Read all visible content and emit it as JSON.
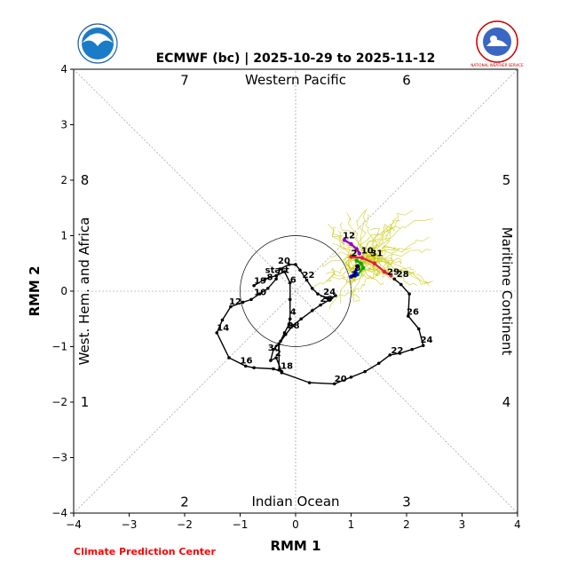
{
  "chart_data": {
    "type": "scatter",
    "title": "ECMWF (bc) | 2025-10-29 to 2025-11-12",
    "xlabel": "RMM 1",
    "ylabel": "RMM 2",
    "xlim": [
      -4,
      4
    ],
    "ylim": [
      -4,
      4
    ],
    "xticks": [
      "−4",
      "−3",
      "−2",
      "−1",
      "0",
      "1",
      "2",
      "3",
      "4"
    ],
    "yticks": [
      "−4",
      "−3",
      "−2",
      "−1",
      "0",
      "1",
      "2",
      "3",
      "4"
    ],
    "regions": {
      "top": "Western Pacific",
      "bottom": "Indian Ocean",
      "left": "West. Hem. and Africa",
      "right": "Maritime Continent"
    },
    "phases": [
      {
        "label": "7",
        "x": -2.0,
        "y": 3.8
      },
      {
        "label": "6",
        "x": 2.0,
        "y": 3.8
      },
      {
        "label": "8",
        "x": -3.8,
        "y": 2.0
      },
      {
        "label": "5",
        "x": 3.8,
        "y": 2.0
      },
      {
        "label": "1",
        "x": -3.8,
        "y": -2.0
      },
      {
        "label": "4",
        "x": 3.8,
        "y": -2.0
      },
      {
        "label": "2",
        "x": -2.0,
        "y": -3.8
      },
      {
        "label": "3",
        "x": 2.0,
        "y": -3.8
      }
    ],
    "grid": "dashed diagonals and zero lines",
    "unit_circle": 1,
    "series": [
      {
        "color": "#000000",
        "points": [
          [
            -0.75,
            0.1
          ],
          [
            -0.55,
            0.22
          ],
          [
            -0.35,
            0.28
          ],
          [
            -0.2,
            0.35
          ],
          [
            -0.1,
            0.15
          ],
          [
            -0.1,
            -0.15
          ],
          [
            -0.1,
            -0.5
          ],
          [
            -0.12,
            -0.6
          ],
          [
            -0.2,
            -0.75
          ],
          [
            -0.27,
            -0.9
          ],
          [
            -0.3,
            -0.95
          ],
          [
            -0.4,
            -1.05
          ],
          [
            -0.45,
            -1.25
          ],
          [
            -0.35,
            -1.2
          ],
          [
            -0.25,
            -1.45
          ],
          [
            -0.4,
            -1.4
          ],
          [
            -0.75,
            -1.38
          ],
          [
            -0.9,
            -1.35
          ],
          [
            -1.2,
            -1.2
          ],
          [
            -1.42,
            -0.75
          ],
          [
            -1.32,
            -0.52
          ],
          [
            -1.17,
            -0.28
          ],
          [
            -0.95,
            -0.2
          ],
          [
            -0.8,
            -0.15
          ],
          [
            -0.65,
            -0.05
          ],
          [
            -0.5,
            0.05
          ],
          [
            -0.35,
            0.22
          ],
          [
            -0.28,
            0.4
          ],
          [
            -0.12,
            0.48
          ],
          [
            0.0,
            0.48
          ],
          [
            0.08,
            0.38
          ],
          [
            0.2,
            0.2
          ],
          [
            0.3,
            0.05
          ],
          [
            0.4,
            -0.05
          ],
          [
            0.55,
            -0.12
          ],
          [
            0.65,
            -0.12
          ],
          [
            0.72,
            -0.08
          ],
          [
            0.62,
            -0.15
          ],
          [
            0.45,
            -0.25
          ],
          [
            0.3,
            -0.35
          ],
          [
            0.1,
            -0.5
          ],
          [
            -0.05,
            -0.62
          ],
          [
            -0.18,
            -0.78
          ],
          [
            -0.3,
            -0.95
          ],
          [
            -0.3,
            -1.42
          ],
          [
            -0.25,
            -1.47
          ],
          [
            0.25,
            -1.65
          ],
          [
            0.7,
            -1.67
          ],
          [
            1.0,
            -1.55
          ],
          [
            1.25,
            -1.45
          ],
          [
            1.5,
            -1.3
          ],
          [
            1.7,
            -1.15
          ],
          [
            1.88,
            -1.12
          ],
          [
            2.1,
            -1.05
          ],
          [
            2.3,
            -0.98
          ],
          [
            2.22,
            -0.68
          ],
          [
            2.03,
            -0.45
          ],
          [
            2.05,
            -0.05
          ],
          [
            1.9,
            0.12
          ],
          [
            1.78,
            0.22
          ]
        ]
      },
      {
        "color": "#e6194b",
        "points": [
          [
            1.0,
            0.62
          ],
          [
            1.2,
            0.6
          ],
          [
            1.42,
            0.5
          ],
          [
            1.6,
            0.35
          ],
          [
            1.72,
            0.28
          ]
        ]
      },
      {
        "color": "#00aa00",
        "points": [
          [
            1.1,
            0.55
          ],
          [
            1.18,
            0.5
          ],
          [
            1.22,
            0.42
          ],
          [
            1.12,
            0.3
          ]
        ]
      },
      {
        "color": "#0000ff",
        "points": [
          [
            1.12,
            0.45
          ],
          [
            1.08,
            0.35
          ],
          [
            1.0,
            0.26
          ],
          [
            1.1,
            0.3
          ]
        ]
      },
      {
        "color": "#9400d3",
        "points": [
          [
            0.88,
            0.92
          ],
          [
            1.0,
            0.85
          ],
          [
            1.1,
            0.76
          ],
          [
            1.15,
            0.68
          ]
        ]
      }
    ],
    "labels": [
      {
        "text": "start",
        "x": -0.55,
        "y": 0.33
      },
      {
        "text": "19",
        "x": -0.75,
        "y": 0.14
      },
      {
        "text": "8",
        "x": -0.52,
        "y": 0.2
      },
      {
        "text": "6",
        "x": -0.1,
        "y": 0.15
      },
      {
        "text": "20",
        "x": -0.32,
        "y": 0.5
      },
      {
        "text": "22",
        "x": 0.12,
        "y": 0.24
      },
      {
        "text": "10",
        "x": -0.75,
        "y": -0.07
      },
      {
        "text": "12",
        "x": -1.2,
        "y": -0.24
      },
      {
        "text": "14",
        "x": -1.42,
        "y": -0.71
      },
      {
        "text": "16",
        "x": -1.0,
        "y": -1.3
      },
      {
        "text": "18",
        "x": -0.27,
        "y": -1.4
      },
      {
        "text": "20",
        "x": 0.7,
        "y": -1.63
      },
      {
        "text": "22",
        "x": 1.72,
        "y": -1.12
      },
      {
        "text": "24",
        "x": 2.25,
        "y": -0.93
      },
      {
        "text": "26",
        "x": 2.0,
        "y": -0.42
      },
      {
        "text": "28",
        "x": 1.82,
        "y": 0.26
      },
      {
        "text": "29",
        "x": 1.65,
        "y": 0.3
      },
      {
        "text": "31",
        "x": 1.35,
        "y": 0.63
      },
      {
        "text": "10",
        "x": 1.18,
        "y": 0.68
      },
      {
        "text": "2",
        "x": 1.0,
        "y": 0.63
      },
      {
        "text": "12",
        "x": 0.85,
        "y": 0.95
      },
      {
        "text": "8",
        "x": 1.06,
        "y": 0.37
      },
      {
        "text": "2",
        "x": 1.0,
        "y": 0.25
      },
      {
        "text": "4",
        "x": -0.1,
        "y": -0.42
      },
      {
        "text": "24",
        "x": 0.5,
        "y": -0.06
      },
      {
        "text": "26",
        "x": 0.44,
        "y": -0.19
      },
      {
        "text": "28",
        "x": -0.15,
        "y": -0.67
      },
      {
        "text": "30",
        "x": -0.5,
        "y": -1.07
      },
      {
        "text": "2",
        "x": -0.37,
        "y": -1.17
      }
    ],
    "ensemble_color": "#c8c800",
    "ensemble_center": [
      1.2,
      0.5
    ]
  },
  "credit": "Climate Prediction Center",
  "logos": {
    "left": {
      "text": "NOAA"
    },
    "right": {
      "text": "NATIONAL WEATHER SERVICE"
    }
  }
}
